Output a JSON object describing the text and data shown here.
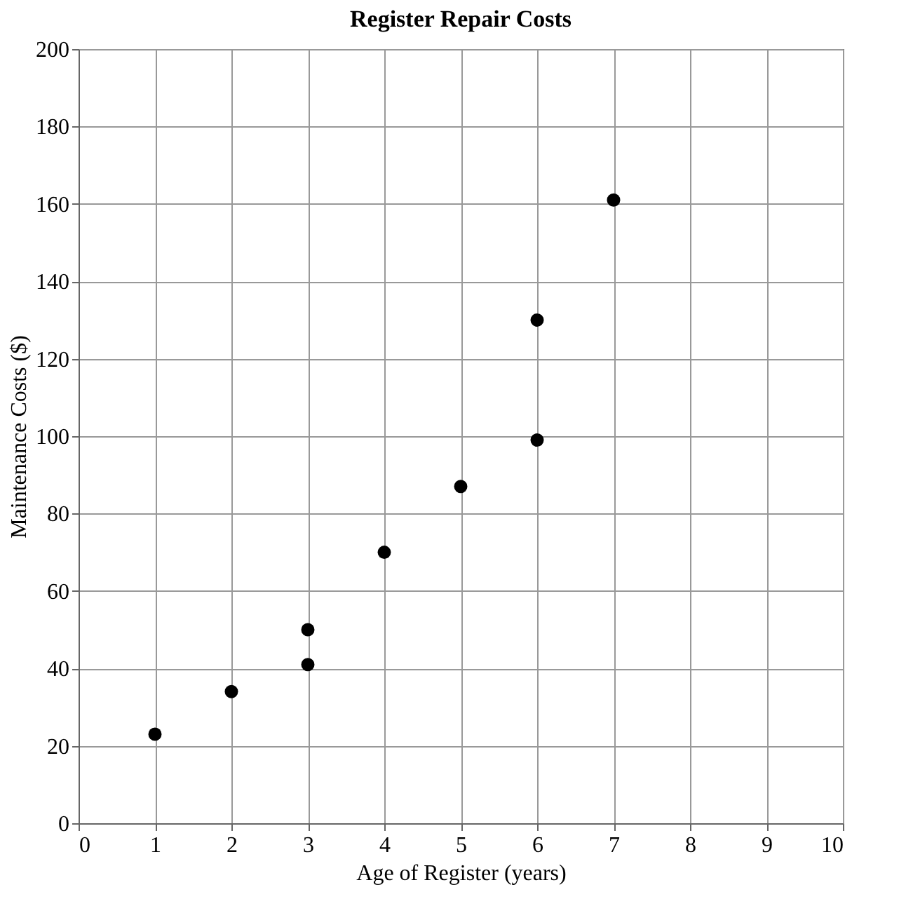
{
  "chart_data": {
    "type": "scatter",
    "title": "Register Repair Costs",
    "xlabel": "Age of Register (years)",
    "ylabel": "Maintenance Costs ($)",
    "x": [
      1,
      2,
      3,
      3,
      4,
      5,
      6,
      6,
      7
    ],
    "series": [
      {
        "color": "#000000",
        "values": [
          23,
          34,
          41,
          50,
          70,
          87,
          99,
          130,
          161
        ]
      }
    ],
    "xlim": [
      0,
      10
    ],
    "xticks": [
      0,
      1,
      2,
      3,
      4,
      5,
      6,
      7,
      8,
      9,
      10
    ],
    "ylim": [
      0,
      200
    ],
    "yticks": [
      0,
      20,
      40,
      60,
      80,
      100,
      120,
      140,
      160,
      180,
      200
    ],
    "grid": true,
    "marker": "circle",
    "legend": false
  }
}
